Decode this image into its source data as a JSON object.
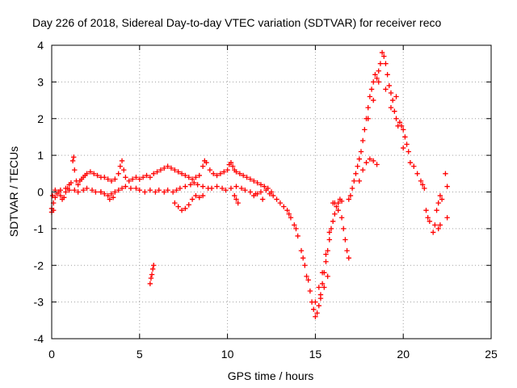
{
  "chart_data": {
    "type": "scatter",
    "title": "Day 226 of 2018, Sidereal Day-to-day VTEC variation (SDTVAR) for receiver reco",
    "xlabel": "GPS time / hours",
    "ylabel": "SDTVAR / TECUs",
    "xlim": [
      0,
      25
    ],
    "ylim": [
      -4,
      4
    ],
    "xticks": [
      0,
      5,
      10,
      15,
      20,
      25
    ],
    "yticks": [
      -4,
      -3,
      -2,
      -1,
      0,
      1,
      2,
      3,
      4
    ],
    "grid": true,
    "marker": "+",
    "colors": {
      "series": "#ff0000",
      "axis": "#000000",
      "grid": "#a0a0a0"
    },
    "series": [
      {
        "name": "SDTVAR",
        "points": [
          [
            0.0,
            -0.45
          ],
          [
            0.1,
            -0.3
          ],
          [
            0.2,
            -0.15
          ],
          [
            0.3,
            -0.05
          ],
          [
            0.4,
            0.0
          ],
          [
            0.5,
            -0.1
          ],
          [
            0.6,
            -0.2
          ],
          [
            0.7,
            -0.15
          ],
          [
            0.8,
            0.0
          ],
          [
            0.9,
            0.1
          ],
          [
            1.0,
            0.2
          ],
          [
            1.1,
            0.25
          ],
          [
            1.2,
            0.85
          ],
          [
            1.25,
            0.95
          ],
          [
            1.3,
            0.6
          ],
          [
            1.4,
            0.3
          ],
          [
            1.5,
            0.2
          ],
          [
            1.6,
            0.3
          ],
          [
            1.7,
            0.35
          ],
          [
            1.8,
            0.4
          ],
          [
            1.9,
            0.45
          ],
          [
            2.0,
            0.5
          ],
          [
            2.2,
            0.55
          ],
          [
            2.4,
            0.5
          ],
          [
            2.6,
            0.45
          ],
          [
            2.8,
            0.4
          ],
          [
            3.0,
            0.4
          ],
          [
            3.2,
            0.35
          ],
          [
            3.4,
            0.3
          ],
          [
            3.6,
            0.35
          ],
          [
            3.8,
            0.5
          ],
          [
            3.9,
            0.7
          ],
          [
            4.0,
            0.85
          ],
          [
            4.1,
            0.6
          ],
          [
            4.2,
            0.4
          ],
          [
            4.4,
            0.3
          ],
          [
            4.6,
            0.35
          ],
          [
            4.8,
            0.4
          ],
          [
            5.0,
            0.35
          ],
          [
            5.2,
            0.4
          ],
          [
            5.4,
            0.45
          ],
          [
            5.6,
            0.4
          ],
          [
            5.8,
            0.5
          ],
          [
            6.0,
            0.55
          ],
          [
            6.2,
            0.6
          ],
          [
            6.4,
            0.65
          ],
          [
            6.6,
            0.7
          ],
          [
            6.8,
            0.65
          ],
          [
            7.0,
            0.6
          ],
          [
            7.2,
            0.55
          ],
          [
            7.4,
            0.5
          ],
          [
            7.6,
            0.45
          ],
          [
            7.8,
            0.4
          ],
          [
            8.0,
            0.35
          ],
          [
            8.2,
            0.4
          ],
          [
            8.4,
            0.45
          ],
          [
            8.6,
            0.7
          ],
          [
            8.7,
            0.85
          ],
          [
            8.8,
            0.8
          ],
          [
            9.0,
            0.6
          ],
          [
            9.2,
            0.5
          ],
          [
            9.4,
            0.45
          ],
          [
            9.6,
            0.5
          ],
          [
            9.8,
            0.55
          ],
          [
            10.0,
            0.6
          ],
          [
            10.1,
            0.75
          ],
          [
            10.2,
            0.8
          ],
          [
            10.3,
            0.7
          ],
          [
            10.4,
            0.6
          ],
          [
            10.5,
            0.55
          ],
          [
            10.7,
            0.5
          ],
          [
            10.9,
            0.45
          ],
          [
            11.1,
            0.4
          ],
          [
            11.3,
            0.35
          ],
          [
            11.5,
            0.3
          ],
          [
            11.7,
            0.25
          ],
          [
            11.9,
            0.2
          ],
          [
            12.1,
            0.15
          ],
          [
            12.3,
            0.1
          ],
          [
            12.5,
            0.0
          ],
          [
            0.05,
            -0.1
          ],
          [
            0.2,
            0.05
          ],
          [
            0.5,
            0.05
          ],
          [
            0.8,
            0.1
          ],
          [
            1.0,
            0.05
          ],
          [
            1.3,
            0.05
          ],
          [
            1.5,
            0.0
          ],
          [
            1.8,
            0.05
          ],
          [
            2.0,
            0.1
          ],
          [
            2.3,
            0.05
          ],
          [
            2.5,
            0.0
          ],
          [
            2.8,
            0.0
          ],
          [
            3.0,
            -0.05
          ],
          [
            3.2,
            -0.1
          ],
          [
            3.4,
            -0.05
          ],
          [
            3.6,
            0.0
          ],
          [
            3.8,
            0.05
          ],
          [
            4.0,
            0.1
          ],
          [
            4.2,
            0.15
          ],
          [
            4.5,
            0.1
          ],
          [
            4.8,
            0.1
          ],
          [
            5.0,
            0.05
          ],
          [
            5.3,
            0.0
          ],
          [
            5.6,
            0.05
          ],
          [
            5.9,
            0.0
          ],
          [
            6.1,
            0.05
          ],
          [
            6.4,
            0.0
          ],
          [
            6.6,
            0.05
          ],
          [
            6.9,
            0.0
          ],
          [
            7.1,
            0.05
          ],
          [
            7.3,
            0.1
          ],
          [
            7.6,
            0.15
          ],
          [
            7.9,
            0.2
          ],
          [
            8.1,
            0.25
          ],
          [
            8.3,
            0.2
          ],
          [
            8.6,
            0.15
          ],
          [
            8.9,
            0.1
          ],
          [
            9.1,
            0.1
          ],
          [
            9.4,
            0.15
          ],
          [
            9.7,
            0.1
          ],
          [
            9.9,
            0.05
          ],
          [
            10.2,
            0.1
          ],
          [
            10.5,
            0.15
          ],
          [
            10.8,
            0.1
          ],
          [
            11.0,
            0.05
          ],
          [
            11.3,
            0.0
          ],
          [
            11.6,
            -0.05
          ],
          [
            11.9,
            0.0
          ],
          [
            12.2,
            0.05
          ],
          [
            12.4,
            -0.05
          ],
          [
            2.8,
            0.0
          ],
          [
            3.3,
            -0.2
          ],
          [
            3.5,
            -0.15
          ],
          [
            7.0,
            -0.3
          ],
          [
            7.2,
            -0.4
          ],
          [
            7.4,
            -0.5
          ],
          [
            7.6,
            -0.45
          ],
          [
            7.8,
            -0.35
          ],
          [
            8.0,
            -0.2
          ],
          [
            8.2,
            -0.1
          ],
          [
            8.4,
            -0.15
          ],
          [
            8.6,
            -0.1
          ],
          [
            10.5,
            -0.2
          ],
          [
            10.6,
            -0.3
          ],
          [
            10.4,
            -0.1
          ],
          [
            11.5,
            -0.1
          ],
          [
            11.7,
            -0.05
          ],
          [
            12.0,
            -0.2
          ],
          [
            0.0,
            -0.55
          ],
          [
            0.1,
            -0.5
          ],
          [
            5.6,
            -2.5
          ],
          [
            5.65,
            -2.35
          ],
          [
            5.7,
            -2.25
          ],
          [
            5.75,
            -2.1
          ],
          [
            5.8,
            -2.0
          ],
          [
            12.6,
            -0.1
          ],
          [
            12.8,
            -0.2
          ],
          [
            13.0,
            -0.3
          ],
          [
            13.2,
            -0.4
          ],
          [
            13.4,
            -0.5
          ],
          [
            13.6,
            -0.7
          ],
          [
            13.8,
            -0.9
          ],
          [
            14.0,
            -1.2
          ],
          [
            14.2,
            -1.6
          ],
          [
            14.4,
            -2.0
          ],
          [
            14.6,
            -2.4
          ],
          [
            14.7,
            -2.7
          ],
          [
            14.8,
            -3.0
          ],
          [
            14.9,
            -3.2
          ],
          [
            15.0,
            -3.4
          ],
          [
            15.1,
            -3.3
          ],
          [
            15.2,
            -3.1
          ],
          [
            15.3,
            -2.8
          ],
          [
            15.4,
            -2.5
          ],
          [
            15.5,
            -2.2
          ],
          [
            15.6,
            -1.9
          ],
          [
            15.7,
            -1.6
          ],
          [
            15.8,
            -1.3
          ],
          [
            15.9,
            -1.0
          ],
          [
            16.0,
            -0.8
          ],
          [
            16.1,
            -0.6
          ],
          [
            16.2,
            -0.4
          ],
          [
            16.3,
            -0.3
          ],
          [
            16.4,
            -0.2
          ],
          [
            16.5,
            -0.25
          ],
          [
            13.5,
            -0.6
          ],
          [
            13.9,
            -1.0
          ],
          [
            14.3,
            -1.8
          ],
          [
            14.5,
            -2.3
          ],
          [
            15.0,
            -3.0
          ],
          [
            15.2,
            -2.6
          ],
          [
            15.4,
            -2.2
          ],
          [
            15.6,
            -1.7
          ],
          [
            15.8,
            -1.1
          ],
          [
            16.0,
            -0.3
          ],
          [
            16.1,
            -0.3
          ],
          [
            16.3,
            -0.5
          ],
          [
            16.5,
            -0.7
          ],
          [
            16.6,
            -1.0
          ],
          [
            16.7,
            -1.3
          ],
          [
            16.8,
            -1.6
          ],
          [
            16.9,
            -1.8
          ],
          [
            15.3,
            -2.9
          ],
          [
            15.5,
            -2.6
          ],
          [
            15.7,
            -2.3
          ],
          [
            16.9,
            -0.2
          ],
          [
            17.0,
            -0.1
          ],
          [
            17.1,
            0.1
          ],
          [
            17.2,
            0.3
          ],
          [
            17.3,
            0.5
          ],
          [
            17.4,
            0.7
          ],
          [
            17.5,
            0.9
          ],
          [
            17.6,
            1.1
          ],
          [
            17.7,
            1.4
          ],
          [
            17.8,
            1.7
          ],
          [
            17.9,
            2.0
          ],
          [
            18.0,
            2.3
          ],
          [
            18.1,
            2.6
          ],
          [
            18.2,
            2.8
          ],
          [
            18.3,
            3.0
          ],
          [
            18.4,
            3.2
          ],
          [
            18.5,
            3.1
          ],
          [
            18.6,
            3.3
          ],
          [
            18.7,
            3.5
          ],
          [
            18.8,
            3.8
          ],
          [
            18.9,
            3.7
          ],
          [
            19.0,
            3.5
          ],
          [
            19.1,
            3.2
          ],
          [
            19.2,
            2.9
          ],
          [
            19.3,
            2.7
          ],
          [
            19.4,
            2.5
          ],
          [
            19.5,
            2.2
          ],
          [
            19.6,
            2.0
          ],
          [
            19.7,
            1.8
          ],
          [
            19.8,
            1.9
          ],
          [
            19.9,
            1.8
          ],
          [
            20.0,
            1.7
          ],
          [
            20.1,
            1.5
          ],
          [
            20.2,
            1.3
          ],
          [
            20.3,
            1.1
          ],
          [
            17.5,
            0.3
          ],
          [
            17.7,
            0.6
          ],
          [
            17.9,
            0.8
          ],
          [
            18.1,
            0.9
          ],
          [
            18.3,
            0.85
          ],
          [
            18.5,
            0.75
          ],
          [
            18.0,
            2.0
          ],
          [
            18.3,
            2.5
          ],
          [
            18.6,
            3.0
          ],
          [
            19.0,
            2.8
          ],
          [
            19.3,
            2.3
          ],
          [
            19.6,
            2.6
          ],
          [
            20.0,
            1.2
          ],
          [
            20.4,
            0.8
          ],
          [
            20.6,
            0.7
          ],
          [
            20.8,
            0.5
          ],
          [
            21.0,
            0.3
          ],
          [
            21.1,
            0.2
          ],
          [
            21.2,
            0.1
          ],
          [
            21.3,
            -0.5
          ],
          [
            21.4,
            -0.7
          ],
          [
            21.5,
            -0.8
          ],
          [
            21.7,
            -1.1
          ],
          [
            21.8,
            -0.9
          ],
          [
            21.9,
            -0.5
          ],
          [
            22.0,
            -0.3
          ],
          [
            22.1,
            -0.1
          ],
          [
            22.0,
            -1.0
          ],
          [
            22.1,
            -0.9
          ],
          [
            22.2,
            -0.2
          ],
          [
            22.4,
            0.5
          ],
          [
            22.5,
            0.15
          ],
          [
            22.5,
            -0.7
          ]
        ]
      }
    ]
  }
}
